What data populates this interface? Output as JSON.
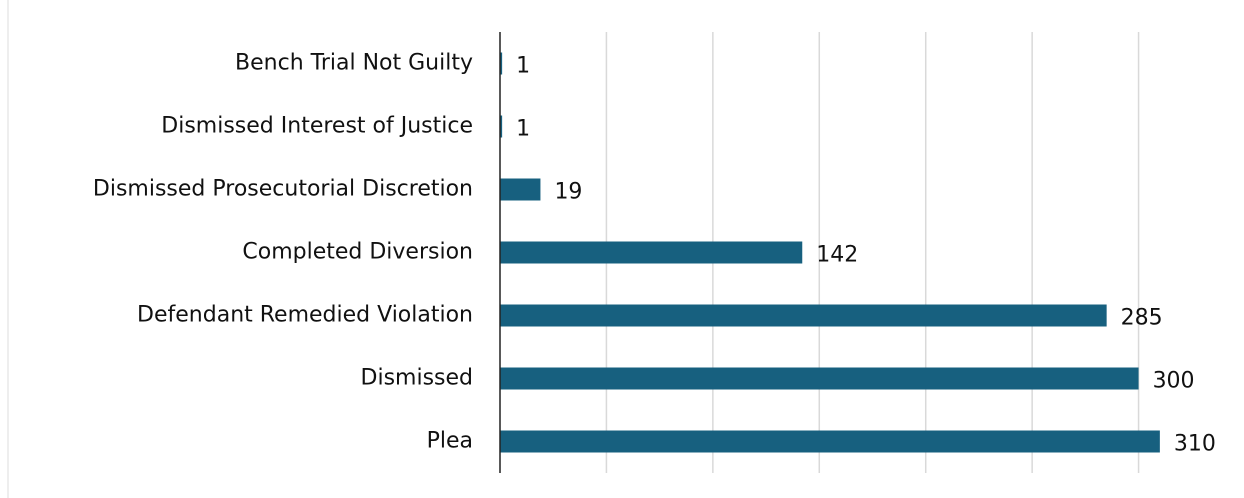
{
  "chart_data": {
    "type": "bar",
    "orientation": "horizontal",
    "categories": [
      "Bench Trial Not Guilty",
      "Dismissed Interest of Justice",
      "Dismissed Prosecutorial Discretion",
      "Completed Diversion",
      "Defendant Remedied Violation",
      "Dismissed",
      "Plea"
    ],
    "values": [
      1,
      1,
      19,
      142,
      285,
      300,
      310
    ],
    "color": "#17607f",
    "xlim": [
      0,
      350
    ],
    "xticks": [
      0,
      50,
      100,
      150,
      200,
      250,
      300
    ],
    "grid": true
  }
}
